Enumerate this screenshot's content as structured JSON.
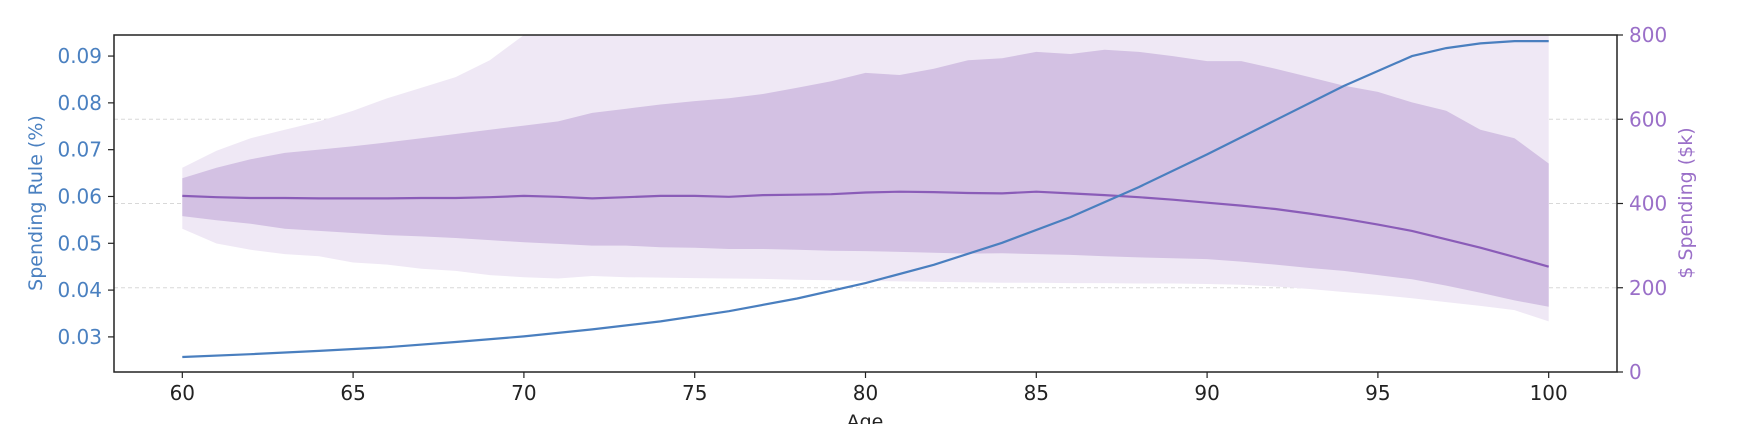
{
  "chart_data": {
    "type": "line",
    "xlabel": "Age",
    "ylabel_left": "Spending Rule (%)",
    "ylabel_right": "$ Spending ($k)",
    "xlim": [
      58,
      102
    ],
    "ylim_left": [
      0.0225,
      0.0945
    ],
    "ylim_right": [
      0,
      800
    ],
    "x_ticks": [
      60,
      65,
      70,
      75,
      80,
      85,
      90,
      95,
      100
    ],
    "y_left_ticks": [
      "0.03",
      "0.04",
      "0.05",
      "0.06",
      "0.07",
      "0.08",
      "0.09"
    ],
    "y_right_ticks": [
      "0",
      "200",
      "400",
      "600",
      "800"
    ],
    "grid": "horizontal dashed (right axis)",
    "colors": {
      "spending_rule": "#4a7fbf",
      "spending_median": "#8a5cb8",
      "band_outer": "#efe8f5",
      "band_inner": "#d3c1e3",
      "left_axis": "#4a80c0",
      "right_axis": "#9a6fc8"
    },
    "spending_rule": {
      "x": [
        60,
        62,
        64,
        66,
        68,
        70,
        72,
        74,
        76,
        78,
        80,
        82,
        84,
        86,
        88,
        90,
        92,
        94,
        96,
        97,
        98,
        99,
        100
      ],
      "y": [
        0.0257,
        0.0263,
        0.027,
        0.0278,
        0.0289,
        0.0301,
        0.0316,
        0.0333,
        0.0355,
        0.0382,
        0.0415,
        0.0454,
        0.0501,
        0.0556,
        0.062,
        0.069,
        0.0763,
        0.0836,
        0.09,
        0.0917,
        0.0927,
        0.0932,
        0.0932
      ]
    },
    "spending_bands": {
      "x": [
        60,
        61,
        62,
        63,
        64,
        65,
        66,
        67,
        68,
        69,
        70,
        71,
        72,
        73,
        74,
        75,
        76,
        77,
        78,
        79,
        80,
        81,
        82,
        83,
        84,
        85,
        86,
        87,
        88,
        89,
        90,
        91,
        92,
        93,
        94,
        95,
        96,
        97,
        98,
        99,
        100
      ],
      "p5": [
        340,
        305,
        290,
        280,
        275,
        260,
        255,
        245,
        240,
        230,
        225,
        222,
        228,
        225,
        224,
        223,
        222,
        221,
        219,
        218,
        216,
        215,
        214,
        213,
        212,
        212,
        211,
        211,
        210,
        210,
        209,
        207,
        203,
        197,
        190,
        183,
        175,
        166,
        157,
        147,
        120
      ],
      "p25": [
        370,
        360,
        352,
        340,
        335,
        330,
        325,
        322,
        318,
        313,
        308,
        304,
        300,
        300,
        296,
        295,
        292,
        292,
        290,
        288,
        287,
        285,
        283,
        281,
        282,
        280,
        278,
        275,
        272,
        270,
        268,
        262,
        255,
        247,
        240,
        230,
        220,
        205,
        188,
        170,
        155
      ],
      "p50": [
        418,
        415,
        413,
        413,
        412,
        412,
        412,
        413,
        413,
        415,
        418,
        416,
        412,
        415,
        418,
        418,
        416,
        420,
        421,
        422,
        426,
        428,
        427,
        425,
        424,
        428,
        424,
        420,
        415,
        409,
        402,
        395,
        387,
        376,
        364,
        350,
        335,
        315,
        295,
        273,
        250
      ],
      "p75": [
        460,
        485,
        505,
        520,
        528,
        536,
        545,
        555,
        565,
        575,
        585,
        595,
        615,
        625,
        635,
        643,
        650,
        660,
        675,
        690,
        710,
        705,
        720,
        740,
        745,
        760,
        755,
        765,
        760,
        750,
        738,
        738,
        720,
        700,
        680,
        665,
        640,
        620,
        575,
        555,
        495
      ],
      "p95": [
        485,
        525,
        555,
        575,
        595,
        620,
        650,
        675,
        700,
        740,
        800,
        800,
        800,
        800,
        800,
        800,
        800,
        800,
        800,
        800,
        800,
        800,
        800,
        800,
        800,
        800,
        800,
        800,
        800,
        800,
        800,
        800,
        800,
        800,
        800,
        800,
        800,
        800,
        800,
        800,
        800
      ]
    }
  }
}
